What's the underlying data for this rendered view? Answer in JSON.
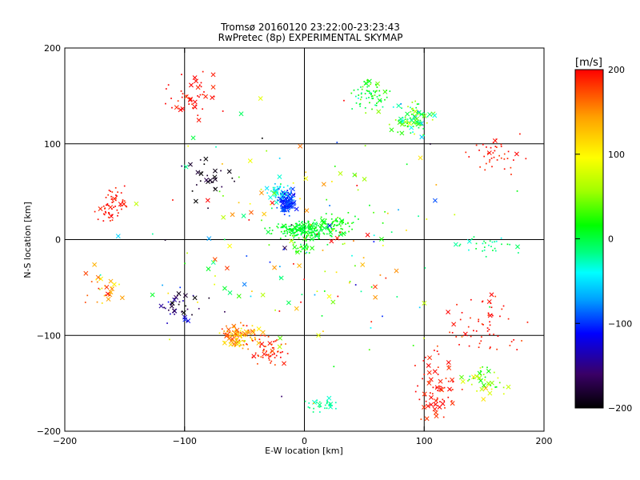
{
  "chart_data": {
    "type": "scatter",
    "title": "Tromsø 20160120 23:22:00-23:23:43",
    "subtitle": "RwPretec (8p) EXPERIMENTAL SKYMAP",
    "xlabel": "E-W location [km]",
    "ylabel": "N-S location [km]",
    "xlim": [
      -200,
      200
    ],
    "ylim": [
      -200,
      200
    ],
    "xticks": [
      -200,
      -100,
      0,
      100,
      200
    ],
    "yticks": [
      -200,
      -100,
      0,
      100,
      200
    ],
    "grid": true,
    "colorbar": {
      "unit": "[m/s]",
      "min": -200,
      "max": 200,
      "ticks": [
        -200,
        -100,
        0,
        100,
        200
      ],
      "colors": [
        "#000000",
        "#3a0066",
        "#0000ff",
        "#00a0ff",
        "#00ffff",
        "#00ff80",
        "#00ff00",
        "#a0ff00",
        "#ffff00",
        "#ffa000",
        "#ff0000"
      ]
    },
    "markers": [
      "dot",
      "cross"
    ],
    "clusters": [
      {
        "x": 0,
        "y": 10,
        "dx": 22,
        "dy": 7,
        "n": 230,
        "v": 5,
        "vs": 15,
        "cross": 0.08
      },
      {
        "x": 25,
        "y": 17,
        "dx": 15,
        "dy": 9,
        "n": 70,
        "v": 15,
        "vs": 15,
        "cross": 0.05
      },
      {
        "x": -15,
        "y": 40,
        "dx": 6,
        "dy": 10,
        "n": 120,
        "v": -100,
        "vs": 20,
        "cross": 0.35
      },
      {
        "x": -22,
        "y": 48,
        "dx": 8,
        "dy": 6,
        "n": 40,
        "v": -40,
        "vs": 20,
        "cross": 0.2
      },
      {
        "x": 0,
        "y": -8,
        "dx": 8,
        "dy": 8,
        "n": 35,
        "v": 20,
        "vs": 25,
        "cross": 0.1
      },
      {
        "x": -55,
        "y": -100,
        "dx": 12,
        "dy": 10,
        "n": 120,
        "v": 140,
        "vs": 50,
        "cross": 0.25
      },
      {
        "x": -30,
        "y": -118,
        "dx": 13,
        "dy": 12,
        "n": 60,
        "v": 190,
        "vs": 25,
        "cross": 0.15
      },
      {
        "x": 90,
        "y": 125,
        "dx": 14,
        "dy": 15,
        "n": 90,
        "v": 20,
        "vs": 70,
        "cross": 0.3
      },
      {
        "x": 55,
        "y": 150,
        "dx": 12,
        "dy": 15,
        "n": 70,
        "v": 10,
        "vs": 30,
        "cross": 0.1
      },
      {
        "x": -95,
        "y": 150,
        "dx": 18,
        "dy": 20,
        "n": 45,
        "v": 195,
        "vs": 15,
        "cross": 0.3
      },
      {
        "x": -160,
        "y": 35,
        "dx": 12,
        "dy": 12,
        "n": 60,
        "v": 195,
        "vs": 15,
        "cross": 0.1
      },
      {
        "x": -170,
        "y": -50,
        "dx": 12,
        "dy": 18,
        "n": 28,
        "v": 140,
        "vs": 50,
        "cross": 0.4
      },
      {
        "x": 160,
        "y": 90,
        "dx": 18,
        "dy": 15,
        "n": 40,
        "v": 195,
        "vs": 15,
        "cross": 0.1
      },
      {
        "x": 150,
        "y": -85,
        "dx": 25,
        "dy": 25,
        "n": 60,
        "v": 195,
        "vs": 20,
        "cross": 0.15
      },
      {
        "x": 110,
        "y": -155,
        "dx": 15,
        "dy": 28,
        "n": 70,
        "v": 195,
        "vs": 20,
        "cross": 0.35
      },
      {
        "x": 150,
        "y": -150,
        "dx": 15,
        "dy": 15,
        "n": 40,
        "v": 60,
        "vs": 60,
        "cross": 0.35
      },
      {
        "x": 15,
        "y": -172,
        "dx": 10,
        "dy": 6,
        "n": 30,
        "v": -20,
        "vs": 15,
        "cross": 0.1
      },
      {
        "x": 155,
        "y": -5,
        "dx": 20,
        "dy": 8,
        "n": 30,
        "v": -10,
        "vs": 30,
        "cross": 0.2
      },
      {
        "x": -80,
        "y": 60,
        "dx": 15,
        "dy": 25,
        "n": 30,
        "v": -190,
        "vs": 20,
        "cross": 0.6
      },
      {
        "x": -105,
        "y": -70,
        "dx": 15,
        "dy": 15,
        "n": 35,
        "v": -160,
        "vs": 60,
        "cross": 0.4
      },
      {
        "x": 0,
        "y": 0,
        "dx": 110,
        "dy": 110,
        "n": 200,
        "v": 60,
        "vs": 170,
        "cross": 0.35
      }
    ]
  }
}
